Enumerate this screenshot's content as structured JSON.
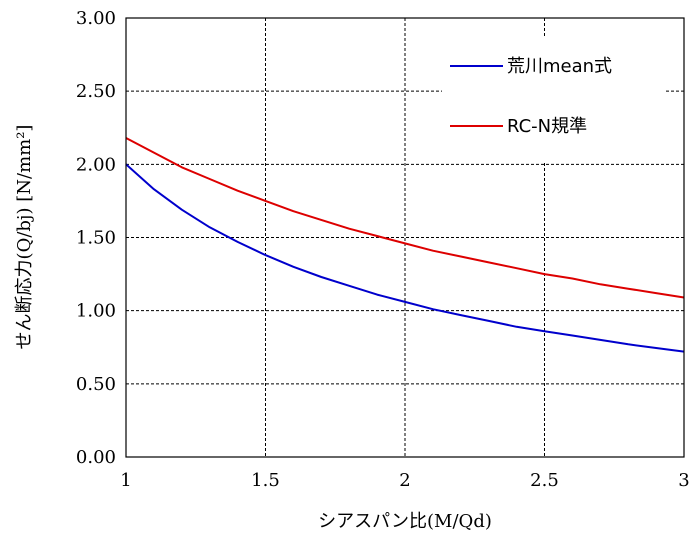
{
  "chart_data": {
    "type": "line",
    "xlabel": "シアスパン比(M/Qd)",
    "ylabel": "せん断応力(Q/bj) [N/mm²]",
    "xlim": [
      1,
      3
    ],
    "ylim": [
      0,
      3
    ],
    "xticks": [
      1,
      1.5,
      2,
      2.5,
      3
    ],
    "xtick_labels": [
      "1",
      "1.5",
      "2",
      "2.5",
      "3"
    ],
    "yticks": [
      0,
      0.5,
      1,
      1.5,
      2,
      2.5,
      3
    ],
    "ytick_labels": [
      "0.00",
      "0.50",
      "1.00",
      "1.50",
      "2.00",
      "2.50",
      "3.00"
    ],
    "grid": true,
    "legend_position": "top-right",
    "series": [
      {
        "name": "荒川mean式",
        "color": "#0000cc",
        "x": [
          1.0,
          1.1,
          1.2,
          1.3,
          1.4,
          1.5,
          1.6,
          1.7,
          1.8,
          1.9,
          2.0,
          2.1,
          2.2,
          2.3,
          2.4,
          2.5,
          2.6,
          2.7,
          2.8,
          2.9,
          3.0
        ],
        "values": [
          2.0,
          1.83,
          1.69,
          1.57,
          1.47,
          1.38,
          1.3,
          1.23,
          1.17,
          1.11,
          1.06,
          1.01,
          0.97,
          0.93,
          0.89,
          0.86,
          0.83,
          0.8,
          0.77,
          0.745,
          0.72
        ]
      },
      {
        "name": "RC-N規準",
        "color": "#dd0000",
        "x": [
          1.0,
          1.1,
          1.2,
          1.3,
          1.4,
          1.5,
          1.6,
          1.7,
          1.8,
          1.9,
          2.0,
          2.1,
          2.2,
          2.3,
          2.4,
          2.5,
          2.6,
          2.7,
          2.8,
          2.9,
          3.0
        ],
        "values": [
          2.18,
          2.08,
          1.98,
          1.9,
          1.82,
          1.75,
          1.68,
          1.62,
          1.56,
          1.51,
          1.46,
          1.41,
          1.37,
          1.33,
          1.29,
          1.25,
          1.22,
          1.18,
          1.15,
          1.12,
          1.09
        ]
      }
    ]
  }
}
